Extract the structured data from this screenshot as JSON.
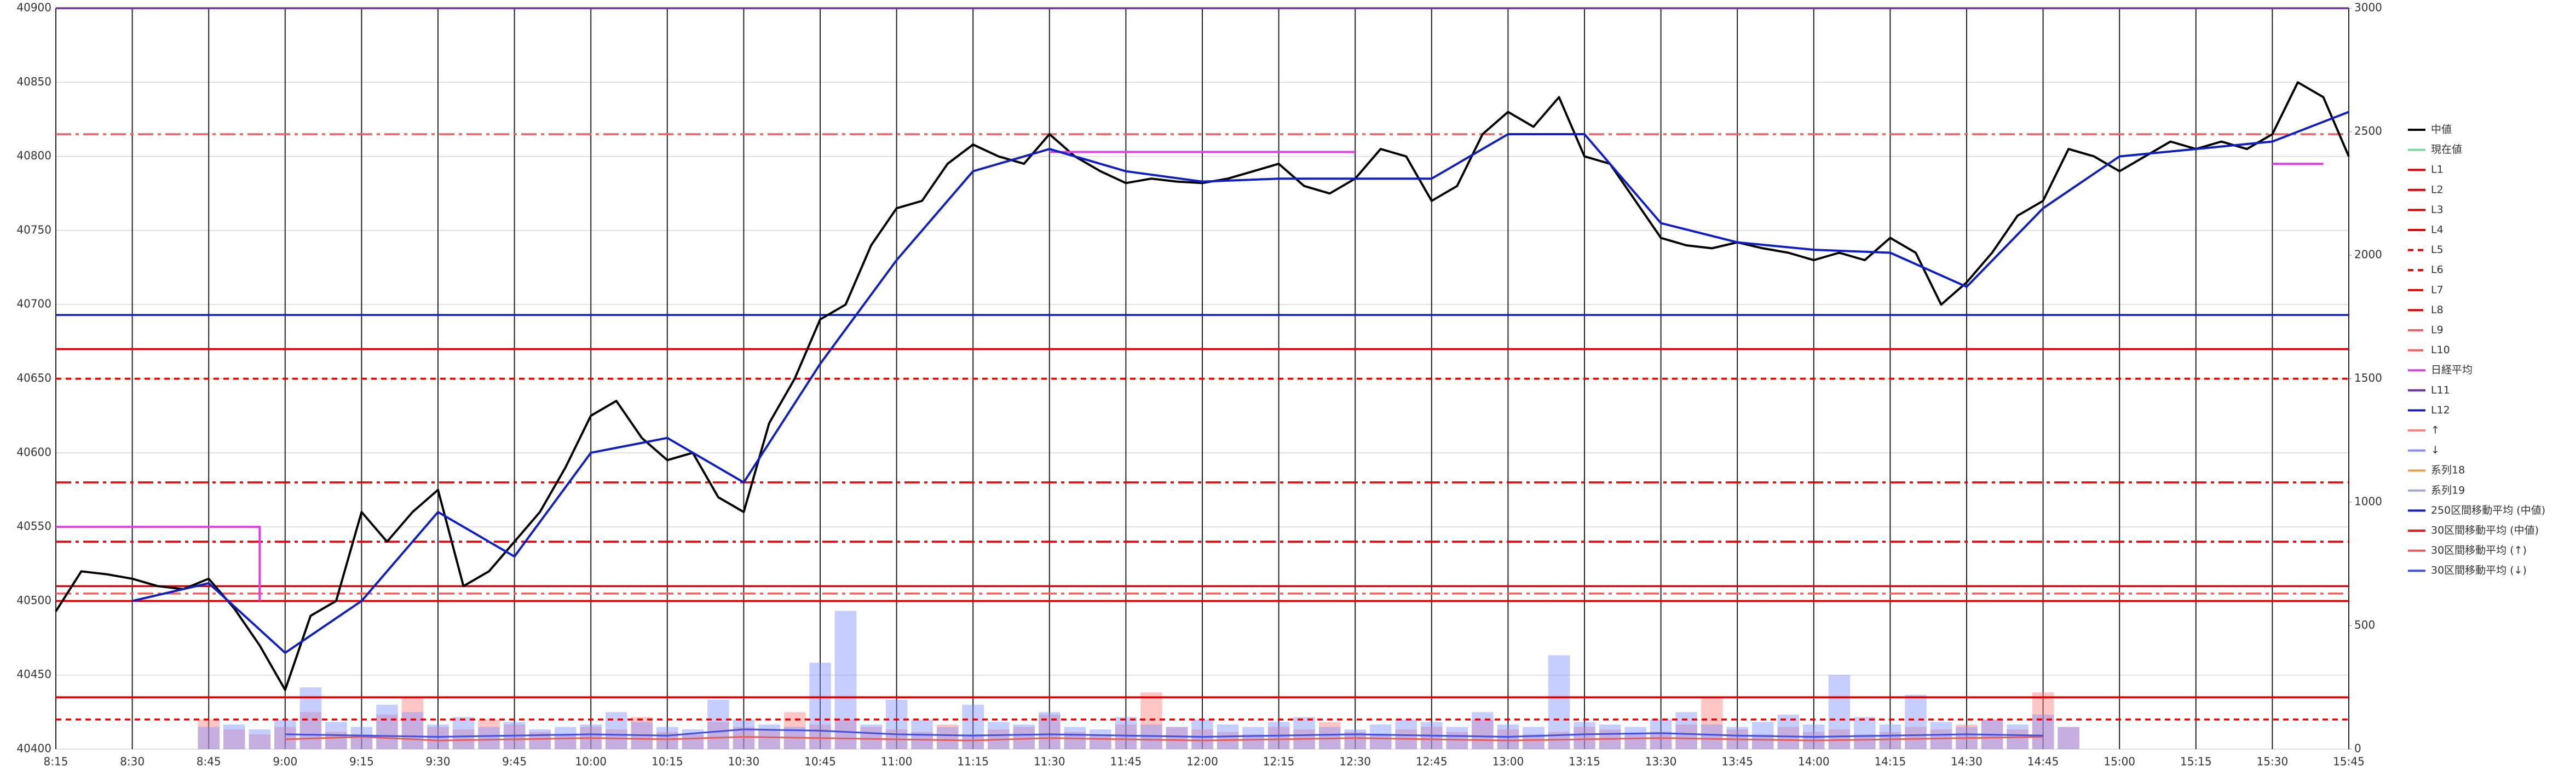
{
  "chart_data": {
    "type": "line",
    "xlim": [
      495,
      945
    ],
    "xticks": [
      {
        "value": 495,
        "label": "8:15"
      },
      {
        "value": 510,
        "label": "8:30"
      },
      {
        "value": 525,
        "label": "8:45"
      },
      {
        "value": 540,
        "label": "9:00"
      },
      {
        "value": 555,
        "label": "9:15"
      },
      {
        "value": 570,
        "label": "9:30"
      },
      {
        "value": 585,
        "label": "9:45"
      },
      {
        "value": 600,
        "label": "10:00"
      },
      {
        "value": 615,
        "label": "10:15"
      },
      {
        "value": 630,
        "label": "10:30"
      },
      {
        "value": 645,
        "label": "10:45"
      },
      {
        "value": 660,
        "label": "11:00"
      },
      {
        "value": 675,
        "label": "11:15"
      },
      {
        "value": 690,
        "label": "11:30"
      },
      {
        "value": 705,
        "label": "11:45"
      },
      {
        "value": 720,
        "label": "12:00"
      },
      {
        "value": 735,
        "label": "12:15"
      },
      {
        "value": 750,
        "label": "12:30"
      },
      {
        "value": 765,
        "label": "12:45"
      },
      {
        "value": 780,
        "label": "13:00"
      },
      {
        "value": 795,
        "label": "13:15"
      },
      {
        "value": 810,
        "label": "13:30"
      },
      {
        "value": 825,
        "label": "13:45"
      },
      {
        "value": 840,
        "label": "14:00"
      },
      {
        "value": 855,
        "label": "14:15"
      },
      {
        "value": 870,
        "label": "14:30"
      },
      {
        "value": 885,
        "label": "14:45"
      },
      {
        "value": 900,
        "label": "15:00"
      },
      {
        "value": 915,
        "label": "15:15"
      },
      {
        "value": 930,
        "label": "15:30"
      },
      {
        "value": 945,
        "label": "15:45"
      }
    ],
    "ylim": [
      40400,
      40900
    ],
    "yticks": [
      40400,
      40450,
      40500,
      40550,
      40600,
      40650,
      40700,
      40750,
      40800,
      40850,
      40900
    ],
    "y2lim": [
      0,
      3000
    ],
    "y2ticks": [
      0,
      500,
      1000,
      1500,
      2000,
      2500,
      3000
    ],
    "grid": true,
    "legend": "right",
    "series": [
      {
        "name": "中値",
        "color": "#000000",
        "style": "solid",
        "mark": "line",
        "x": [
          495,
          500,
          505,
          510,
          515,
          520,
          525,
          530,
          535,
          540,
          545,
          550,
          555,
          560,
          565,
          570,
          575,
          580,
          585,
          590,
          595,
          600,
          605,
          610,
          615,
          620,
          625,
          630,
          635,
          640,
          645,
          650,
          655,
          660,
          665,
          670,
          675,
          680,
          685,
          690,
          695,
          700,
          705,
          710,
          715,
          720,
          725,
          730,
          735,
          740,
          745,
          750,
          755,
          760,
          765,
          770,
          775,
          780,
          785,
          790,
          795,
          800,
          805,
          810,
          815,
          820,
          825,
          830,
          835,
          840,
          845,
          850,
          855,
          860,
          865,
          870,
          875,
          880,
          885,
          890,
          895,
          900,
          905,
          910,
          915,
          920,
          925,
          930,
          935,
          940,
          945
        ],
        "values": [
          40493,
          40520,
          40518,
          40515,
          40510,
          40508,
          40515,
          40495,
          40470,
          40440,
          40490,
          40500,
          40560,
          40540,
          40560,
          40575,
          40510,
          40520,
          40540,
          40560,
          40590,
          40625,
          40635,
          40610,
          40595,
          40600,
          40570,
          40560,
          40620,
          40650,
          40690,
          40700,
          40740,
          40765,
          40770,
          40795,
          40808,
          40800,
          40795,
          40815,
          40800,
          40790,
          40782,
          40785,
          40783,
          40782,
          40785,
          40790,
          40795,
          40780,
          40775,
          40785,
          40805,
          40800,
          40770,
          40780,
          40815,
          40830,
          40820,
          40840,
          40800,
          40795,
          40770,
          40745,
          40740,
          40738,
          40742,
          40738,
          40735,
          40730,
          40735,
          40730,
          40745,
          40735,
          40700,
          40715,
          40735,
          40760,
          40770,
          40805,
          40800,
          40790,
          40800,
          40810,
          40805,
          40810,
          40805,
          40815,
          40850,
          40840,
          40800
        ]
      },
      {
        "name": "現在値",
        "color": "#7fd6a0",
        "style": "solid",
        "mark": "legend"
      },
      {
        "name": "L1",
        "color": "#e00000",
        "style": "solid",
        "mark": "hline",
        "values": [
          40670
        ]
      },
      {
        "name": "L2",
        "color": "#e00000",
        "style": "solid",
        "mark": "hline",
        "values": [
          40510
        ]
      },
      {
        "name": "L3",
        "color": "#e00000",
        "style": "solid",
        "mark": "hline",
        "values": [
          40500
        ]
      },
      {
        "name": "L4",
        "color": "#e00000",
        "style": "solid",
        "mark": "hline",
        "values": [
          40435
        ]
      },
      {
        "name": "L5",
        "color": "#e00000",
        "style": "dashed",
        "mark": "hline",
        "values": [
          40650
        ]
      },
      {
        "name": "L6",
        "color": "#e00000",
        "style": "dashed",
        "mark": "hline",
        "values": [
          40420
        ]
      },
      {
        "name": "L7",
        "color": "#e00000",
        "style": "dashdot",
        "mark": "hline",
        "values": [
          40580
        ]
      },
      {
        "name": "L8",
        "color": "#e00000",
        "style": "dashdot",
        "mark": "hline",
        "values": [
          40540
        ]
      },
      {
        "name": "L9",
        "color": "#f06060",
        "style": "dashdot",
        "mark": "hline",
        "values": [
          40815
        ]
      },
      {
        "name": "L10",
        "color": "#f06060",
        "style": "dashdot",
        "mark": "hline",
        "values": [
          40505
        ]
      },
      {
        "name": "日経平均",
        "color": "#e040e0",
        "style": "solid",
        "mark": "line",
        "x": [
          495,
          535,
          535,
          545,
          690,
          750,
          760,
          930,
          940
        ],
        "values": [
          40550,
          40550,
          40500,
          null,
          40803,
          40803,
          null,
          40795,
          40795
        ]
      },
      {
        "name": "L11",
        "color": "#7030a0",
        "style": "solid",
        "mark": "hline",
        "values": [
          40900
        ]
      },
      {
        "name": "L12",
        "color": "#1020c0",
        "style": "solid",
        "mark": "hline",
        "values": [
          40693
        ]
      },
      {
        "name": "↑",
        "color": "#ff8080",
        "style": "solid",
        "mark": "bar",
        "axis": "y2",
        "x": [
          525,
          530,
          535,
          540,
          545,
          550,
          555,
          560,
          565,
          570,
          575,
          580,
          585,
          590,
          595,
          600,
          605,
          610,
          615,
          620,
          625,
          630,
          635,
          640,
          645,
          650,
          655,
          660,
          665,
          670,
          675,
          680,
          685,
          690,
          695,
          700,
          705,
          710,
          715,
          720,
          725,
          730,
          735,
          740,
          745,
          750,
          755,
          760,
          765,
          770,
          775,
          780,
          785,
          790,
          795,
          800,
          805,
          810,
          815,
          820,
          825,
          830,
          835,
          840,
          845,
          850,
          855,
          860,
          865,
          870,
          875,
          880,
          885,
          890
        ],
        "values": [
          120,
          80,
          60,
          90,
          150,
          70,
          60,
          140,
          210,
          90,
          80,
          120,
          100,
          70,
          60,
          90,
          80,
          130,
          70,
          60,
          110,
          90,
          80,
          150,
          100,
          120,
          90,
          80,
          70,
          100,
          60,
          80,
          90,
          140,
          70,
          60,
          100,
          230,
          90,
          80,
          70,
          60,
          90,
          80,
          110,
          70,
          60,
          80,
          90,
          70,
          120,
          80,
          60,
          70,
          90,
          80,
          60,
          70,
          100,
          210,
          80,
          60,
          90,
          70,
          80,
          60,
          70,
          90,
          80,
          100,
          120,
          80,
          230,
          90
        ]
      },
      {
        "name": "↓",
        "color": "#8090ff",
        "style": "solid",
        "mark": "bar",
        "axis": "y2",
        "x": [
          525,
          530,
          535,
          540,
          545,
          550,
          555,
          560,
          565,
          570,
          575,
          580,
          585,
          590,
          595,
          600,
          605,
          610,
          615,
          620,
          625,
          630,
          635,
          640,
          645,
          650,
          655,
          660,
          665,
          670,
          675,
          680,
          685,
          690,
          695,
          700,
          705,
          710,
          715,
          720,
          725,
          730,
          735,
          740,
          745,
          750,
          755,
          760,
          765,
          770,
          775,
          780,
          785,
          790,
          795,
          800,
          805,
          810,
          815,
          820,
          825,
          830,
          835,
          840,
          845,
          850,
          855,
          860,
          865,
          870,
          875,
          880,
          885,
          890
        ],
        "values": [
          90,
          100,
          80,
          120,
          250,
          110,
          90,
          180,
          150,
          100,
          130,
          90,
          110,
          80,
          90,
          100,
          150,
          110,
          90,
          80,
          200,
          120,
          100,
          90,
          350,
          560,
          100,
          200,
          120,
          90,
          180,
          110,
          100,
          150,
          90,
          80,
          130,
          100,
          90,
          120,
          100,
          90,
          110,
          130,
          90,
          80,
          100,
          120,
          110,
          90,
          150,
          100,
          90,
          380,
          110,
          100,
          90,
          120,
          150,
          100,
          90,
          110,
          140,
          100,
          300,
          130,
          100,
          220,
          110,
          90,
          120,
          100,
          140,
          90
        ]
      },
      {
        "name": "系列18",
        "color": "#f0a050",
        "style": "solid",
        "mark": "legend"
      },
      {
        "name": "系列19",
        "color": "#a0a8d0",
        "style": "solid",
        "mark": "legend"
      },
      {
        "name": "250区間移動平均 (中値)",
        "color": "#1020c0",
        "style": "solid",
        "mark": "line",
        "x": [
          510,
          525,
          540,
          555,
          570,
          585,
          600,
          615,
          630,
          645,
          660,
          675,
          690,
          705,
          720,
          735,
          750,
          765,
          780,
          795,
          810,
          825,
          840,
          855,
          870,
          885,
          900,
          915,
          930,
          945
        ],
        "values": [
          40500,
          40512,
          40465,
          40500,
          40560,
          40530,
          40600,
          40610,
          40580,
          40660,
          40730,
          40790,
          40805,
          40790,
          40783,
          40785,
          40785,
          40785,
          40815,
          40815,
          40755,
          40742,
          40737,
          40735,
          40712,
          40765,
          40800,
          40805,
          40810,
          40830
        ]
      },
      {
        "name": "30区間移動平均 (中値)",
        "color": "#e02020",
        "style": "solid",
        "mark": "legend"
      },
      {
        "name": "30区間移動平均 (↑)",
        "color": "#e06060",
        "style": "solid",
        "mark": "line",
        "axis": "y2",
        "x": [
          540,
          555,
          570,
          585,
          600,
          615,
          630,
          645,
          660,
          675,
          690,
          705,
          720,
          735,
          750,
          765,
          780,
          795,
          810,
          825,
          840,
          855,
          870,
          885
        ],
        "values": [
          40,
          50,
          35,
          40,
          45,
          40,
          50,
          45,
          40,
          35,
          45,
          40,
          35,
          40,
          45,
          40,
          35,
          40,
          45,
          40,
          35,
          40,
          45,
          50
        ]
      },
      {
        "name": "30区間移動平均 (↓)",
        "color": "#4050e0",
        "style": "solid",
        "mark": "line",
        "axis": "y2",
        "x": [
          540,
          555,
          570,
          585,
          600,
          615,
          630,
          645,
          660,
          675,
          690,
          705,
          720,
          735,
          750,
          765,
          780,
          795,
          810,
          825,
          840,
          855,
          870,
          885
        ],
        "values": [
          60,
          55,
          50,
          55,
          60,
          55,
          80,
          75,
          60,
          55,
          60,
          55,
          50,
          55,
          60,
          55,
          50,
          60,
          65,
          55,
          50,
          55,
          60,
          55
        ]
      }
    ]
  }
}
